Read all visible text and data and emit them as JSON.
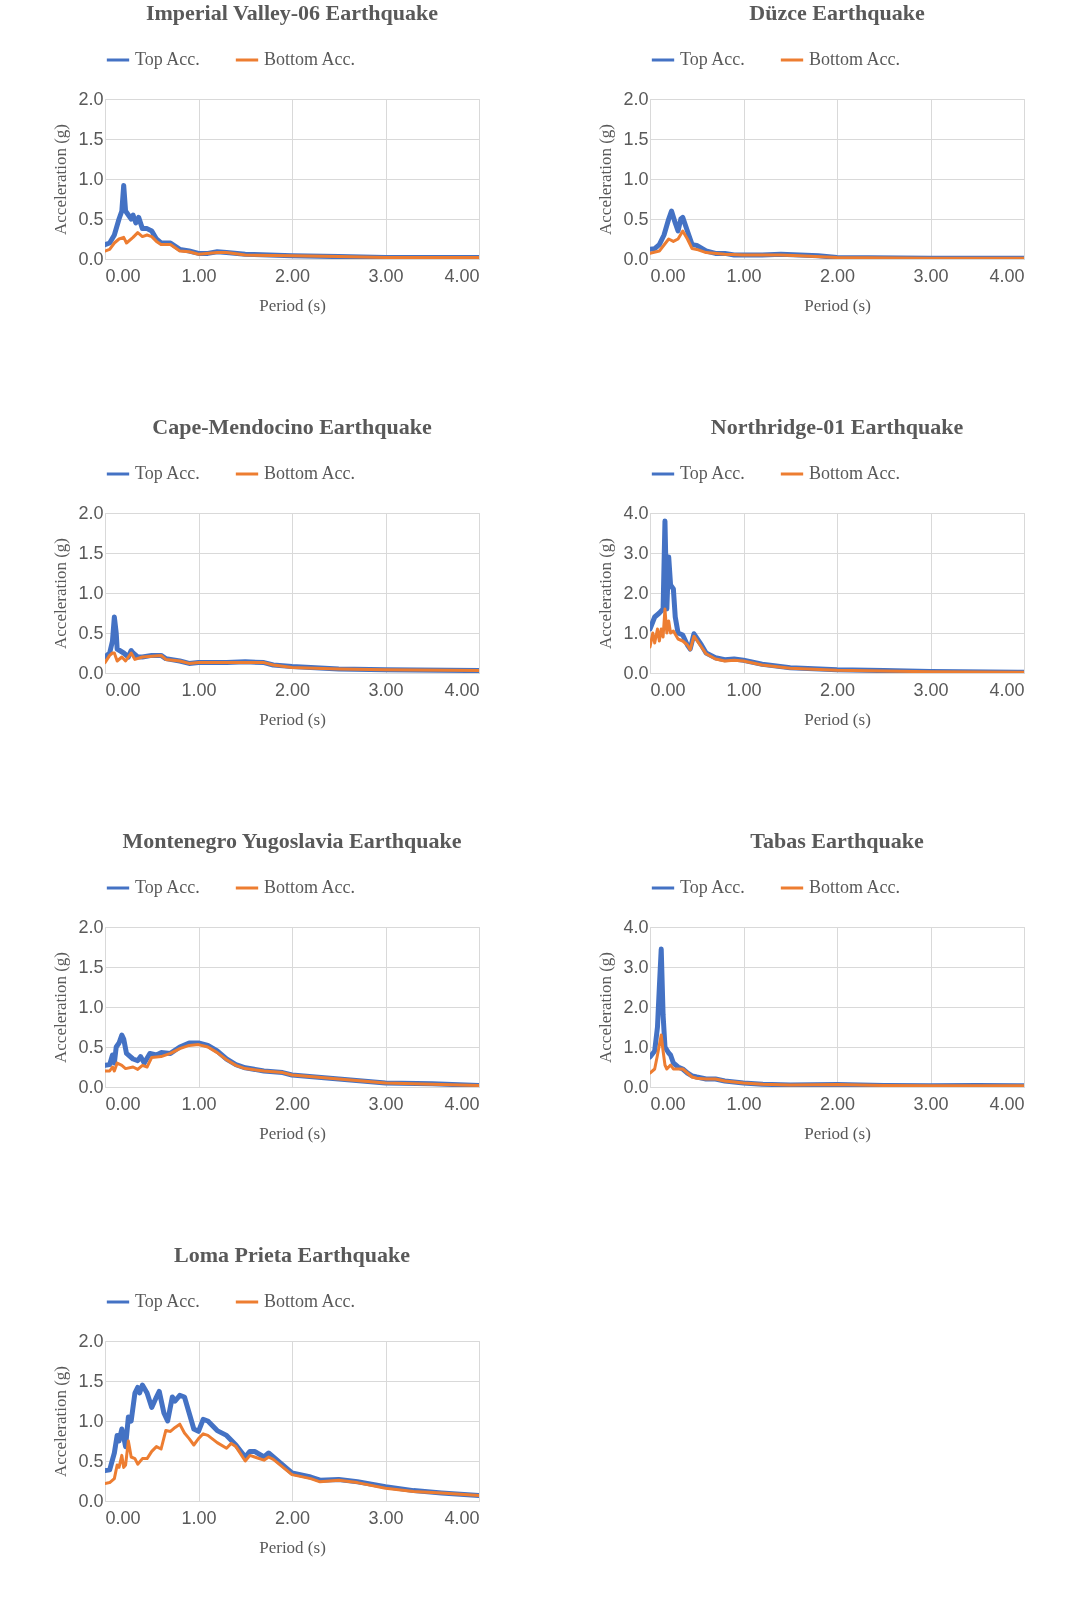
{
  "chart_data": [
    {
      "type": "line",
      "title": "Imperial Valley-06 Earthquake",
      "xlabel": "Period (s)",
      "ylabel": "Acceleration (g)",
      "legend": "top",
      "grid": true,
      "xlim": [
        0,
        4
      ],
      "ylim": [
        0,
        2
      ],
      "xticks": [
        {
          "value": 0,
          "label": "0.00"
        },
        {
          "value": 1,
          "label": "1.00"
        },
        {
          "value": 2,
          "label": "2.00"
        },
        {
          "value": 3,
          "label": "3.00"
        },
        {
          "value": 4,
          "label": "4.00"
        }
      ],
      "yticks": [
        {
          "value": 0,
          "label": "0.0"
        },
        {
          "value": 0.5,
          "label": "0.5"
        },
        {
          "value": 1,
          "label": "1.0"
        },
        {
          "value": 1.5,
          "label": "1.5"
        },
        {
          "value": 2,
          "label": "2.0"
        }
      ],
      "series": [
        {
          "name": "Top Acc.",
          "color": "#4472c4",
          "x": [
            0,
            0.05,
            0.1,
            0.15,
            0.18,
            0.2,
            0.22,
            0.25,
            0.28,
            0.3,
            0.33,
            0.36,
            0.4,
            0.45,
            0.5,
            0.55,
            0.6,
            0.7,
            0.8,
            0.9,
            1.0,
            1.1,
            1.2,
            1.3,
            1.5,
            2.0,
            2.5,
            3.0,
            3.5,
            4.0
          ],
          "values": [
            0.18,
            0.2,
            0.3,
            0.5,
            0.6,
            0.92,
            0.6,
            0.55,
            0.5,
            0.55,
            0.45,
            0.52,
            0.38,
            0.38,
            0.35,
            0.25,
            0.2,
            0.2,
            0.12,
            0.1,
            0.07,
            0.07,
            0.09,
            0.08,
            0.06,
            0.04,
            0.03,
            0.02,
            0.02,
            0.02
          ]
        },
        {
          "name": "Bottom Acc.",
          "color": "#ed7d31",
          "x": [
            0,
            0.05,
            0.1,
            0.15,
            0.2,
            0.23,
            0.3,
            0.35,
            0.4,
            0.45,
            0.5,
            0.55,
            0.6,
            0.7,
            0.8,
            0.9,
            1.0,
            1.2,
            1.3,
            1.5,
            2.0,
            2.5,
            3.0,
            4.0
          ],
          "values": [
            0.1,
            0.12,
            0.2,
            0.25,
            0.27,
            0.2,
            0.27,
            0.33,
            0.28,
            0.3,
            0.28,
            0.22,
            0.18,
            0.18,
            0.1,
            0.09,
            0.06,
            0.08,
            0.08,
            0.05,
            0.04,
            0.03,
            0.02,
            0.02
          ]
        }
      ]
    },
    {
      "type": "line",
      "title": "Düzce Earthquake",
      "xlabel": "Period (s)",
      "ylabel": "Acceleration (g)",
      "legend": "top",
      "grid": true,
      "xlim": [
        0,
        4
      ],
      "ylim": [
        0,
        2
      ],
      "xticks": [
        {
          "value": 0,
          "label": "0.00"
        },
        {
          "value": 1,
          "label": "1.00"
        },
        {
          "value": 2,
          "label": "2.00"
        },
        {
          "value": 3,
          "label": "3.00"
        },
        {
          "value": 4,
          "label": "4.00"
        }
      ],
      "yticks": [
        {
          "value": 0,
          "label": "0.0"
        },
        {
          "value": 0.5,
          "label": "0.5"
        },
        {
          "value": 1,
          "label": "1.0"
        },
        {
          "value": 1.5,
          "label": "1.5"
        },
        {
          "value": 2,
          "label": "2.0"
        }
      ],
      "series": [
        {
          "name": "Top Acc.",
          "color": "#4472c4",
          "x": [
            0,
            0.05,
            0.1,
            0.15,
            0.2,
            0.23,
            0.27,
            0.3,
            0.33,
            0.35,
            0.4,
            0.45,
            0.5,
            0.6,
            0.7,
            0.8,
            0.9,
            1.0,
            1.2,
            1.4,
            1.6,
            1.8,
            2.0,
            3.0,
            4.0
          ],
          "values": [
            0.12,
            0.13,
            0.18,
            0.3,
            0.5,
            0.6,
            0.45,
            0.35,
            0.5,
            0.52,
            0.35,
            0.18,
            0.17,
            0.1,
            0.07,
            0.07,
            0.05,
            0.05,
            0.05,
            0.06,
            0.05,
            0.04,
            0.02,
            0.01,
            0.01
          ]
        },
        {
          "name": "Bottom Acc.",
          "color": "#ed7d31",
          "x": [
            0,
            0.1,
            0.2,
            0.25,
            0.3,
            0.35,
            0.4,
            0.45,
            0.5,
            0.6,
            0.8,
            1.0,
            1.4,
            1.6,
            2.0,
            3.0,
            4.0
          ],
          "values": [
            0.07,
            0.1,
            0.25,
            0.22,
            0.25,
            0.35,
            0.25,
            0.13,
            0.12,
            0.08,
            0.06,
            0.05,
            0.05,
            0.04,
            0.02,
            0.01,
            0.01
          ]
        }
      ]
    },
    {
      "type": "line",
      "title": "Cape-Mendocino Earthquake",
      "xlabel": "Period (s)",
      "ylabel": "Acceleration (g)",
      "legend": "top",
      "grid": true,
      "xlim": [
        0,
        4
      ],
      "ylim": [
        0,
        2
      ],
      "xticks": [
        {
          "value": 0,
          "label": "0.00"
        },
        {
          "value": 1,
          "label": "1.00"
        },
        {
          "value": 2,
          "label": "2.00"
        },
        {
          "value": 3,
          "label": "3.00"
        },
        {
          "value": 4,
          "label": "4.00"
        }
      ],
      "yticks": [
        {
          "value": 0,
          "label": "0.0"
        },
        {
          "value": 0.5,
          "label": "0.5"
        },
        {
          "value": 1,
          "label": "1.0"
        },
        {
          "value": 1.5,
          "label": "1.5"
        },
        {
          "value": 2,
          "label": "2.0"
        }
      ],
      "series": [
        {
          "name": "Top Acc.",
          "color": "#4472c4",
          "x": [
            0,
            0.05,
            0.08,
            0.1,
            0.12,
            0.13,
            0.2,
            0.25,
            0.28,
            0.3,
            0.35,
            0.4,
            0.5,
            0.6,
            0.65,
            0.8,
            0.9,
            1.0,
            1.2,
            1.3,
            1.5,
            1.7,
            1.8,
            2.0,
            2.5,
            3.0,
            4.0
          ],
          "values": [
            0.2,
            0.25,
            0.4,
            0.7,
            0.5,
            0.3,
            0.25,
            0.2,
            0.28,
            0.25,
            0.2,
            0.2,
            0.22,
            0.22,
            0.18,
            0.15,
            0.12,
            0.13,
            0.13,
            0.13,
            0.14,
            0.13,
            0.1,
            0.08,
            0.05,
            0.04,
            0.03
          ]
        },
        {
          "name": "Bottom Acc.",
          "color": "#ed7d31",
          "x": [
            0,
            0.05,
            0.08,
            0.1,
            0.13,
            0.18,
            0.22,
            0.28,
            0.32,
            0.4,
            0.5,
            0.6,
            0.65,
            0.8,
            0.9,
            1.0,
            1.3,
            1.5,
            1.7,
            1.8,
            2.0,
            2.5,
            3.0,
            4.0
          ],
          "values": [
            0.13,
            0.22,
            0.25,
            0.25,
            0.15,
            0.2,
            0.15,
            0.25,
            0.17,
            0.2,
            0.21,
            0.22,
            0.17,
            0.15,
            0.12,
            0.13,
            0.13,
            0.13,
            0.13,
            0.1,
            0.07,
            0.05,
            0.04,
            0.03
          ]
        }
      ]
    },
    {
      "type": "line",
      "title": "Northridge-01 Earthquake",
      "xlabel": "Period (s)",
      "ylabel": "Acceleration (g)",
      "legend": "top",
      "grid": true,
      "xlim": [
        0,
        4
      ],
      "ylim": [
        0,
        4
      ],
      "xticks": [
        {
          "value": 0,
          "label": "0.00"
        },
        {
          "value": 1,
          "label": "1.00"
        },
        {
          "value": 2,
          "label": "2.00"
        },
        {
          "value": 3,
          "label": "3.00"
        },
        {
          "value": 4,
          "label": "4.00"
        }
      ],
      "yticks": [
        {
          "value": 0,
          "label": "0.0"
        },
        {
          "value": 1,
          "label": "1.0"
        },
        {
          "value": 2,
          "label": "2.0"
        },
        {
          "value": 3,
          "label": "3.0"
        },
        {
          "value": 4,
          "label": "4.0"
        }
      ],
      "series": [
        {
          "name": "Top Acc.",
          "color": "#4472c4",
          "x": [
            0,
            0.05,
            0.1,
            0.14,
            0.16,
            0.18,
            0.2,
            0.22,
            0.25,
            0.27,
            0.3,
            0.35,
            0.38,
            0.4,
            0.43,
            0.47,
            0.55,
            0.6,
            0.7,
            0.8,
            0.9,
            1.0,
            1.2,
            1.5,
            2.0,
            2.5,
            3.0,
            4.0
          ],
          "values": [
            1.1,
            1.4,
            1.5,
            1.6,
            3.8,
            1.6,
            2.9,
            2.2,
            2.1,
            1.4,
            1.0,
            0.95,
            0.8,
            0.7,
            0.6,
            0.98,
            0.7,
            0.5,
            0.38,
            0.33,
            0.35,
            0.32,
            0.22,
            0.13,
            0.08,
            0.06,
            0.04,
            0.02
          ]
        },
        {
          "name": "Bottom Acc.",
          "color": "#ed7d31",
          "x": [
            0,
            0.03,
            0.05,
            0.08,
            0.1,
            0.12,
            0.14,
            0.16,
            0.18,
            0.2,
            0.22,
            0.25,
            0.3,
            0.35,
            0.4,
            0.43,
            0.47,
            0.55,
            0.6,
            0.7,
            0.8,
            0.9,
            1.0,
            1.2,
            1.5,
            2.0,
            2.5,
            3.0,
            4.0
          ],
          "values": [
            0.65,
            1.0,
            0.75,
            1.1,
            0.8,
            1.1,
            0.9,
            1.6,
            1.0,
            1.3,
            1.0,
            1.05,
            0.85,
            0.8,
            0.7,
            0.58,
            0.92,
            0.65,
            0.48,
            0.35,
            0.3,
            0.32,
            0.3,
            0.2,
            0.12,
            0.07,
            0.05,
            0.03,
            0.02
          ]
        }
      ]
    },
    {
      "type": "line",
      "title": "Montenegro Yugoslavia Earthquake",
      "xlabel": "Period (s)",
      "ylabel": "Acceleration (g)",
      "legend": "top",
      "grid": true,
      "xlim": [
        0,
        4
      ],
      "ylim": [
        0,
        2
      ],
      "xticks": [
        {
          "value": 0,
          "label": "0.00"
        },
        {
          "value": 1,
          "label": "1.00"
        },
        {
          "value": 2,
          "label": "2.00"
        },
        {
          "value": 3,
          "label": "3.00"
        },
        {
          "value": 4,
          "label": "4.00"
        }
      ],
      "yticks": [
        {
          "value": 0,
          "label": "0.0"
        },
        {
          "value": 0.5,
          "label": "0.5"
        },
        {
          "value": 1,
          "label": "1.0"
        },
        {
          "value": 1.5,
          "label": "1.5"
        },
        {
          "value": 2,
          "label": "2.0"
        }
      ],
      "series": [
        {
          "name": "Top Acc.",
          "color": "#4472c4",
          "x": [
            0,
            0.05,
            0.08,
            0.1,
            0.12,
            0.15,
            0.18,
            0.2,
            0.23,
            0.3,
            0.35,
            0.38,
            0.42,
            0.48,
            0.55,
            0.6,
            0.7,
            0.8,
            0.9,
            1.0,
            1.1,
            1.2,
            1.3,
            1.4,
            1.5,
            1.7,
            1.9,
            2.0,
            2.5,
            3.0,
            3.5,
            4.0
          ],
          "values": [
            0.27,
            0.28,
            0.4,
            0.3,
            0.5,
            0.55,
            0.65,
            0.6,
            0.42,
            0.35,
            0.33,
            0.38,
            0.3,
            0.42,
            0.4,
            0.43,
            0.42,
            0.5,
            0.55,
            0.55,
            0.52,
            0.45,
            0.35,
            0.28,
            0.24,
            0.2,
            0.18,
            0.15,
            0.1,
            0.05,
            0.04,
            0.02
          ]
        },
        {
          "name": "Bottom Acc.",
          "color": "#ed7d31",
          "x": [
            0,
            0.05,
            0.08,
            0.1,
            0.13,
            0.18,
            0.22,
            0.3,
            0.35,
            0.4,
            0.45,
            0.5,
            0.6,
            0.7,
            0.8,
            0.9,
            1.0,
            1.1,
            1.2,
            1.3,
            1.4,
            1.5,
            1.7,
            1.9,
            2.0,
            2.5,
            3.0,
            4.0
          ],
          "values": [
            0.2,
            0.2,
            0.25,
            0.2,
            0.3,
            0.27,
            0.23,
            0.25,
            0.22,
            0.27,
            0.25,
            0.37,
            0.38,
            0.42,
            0.48,
            0.52,
            0.53,
            0.5,
            0.43,
            0.34,
            0.27,
            0.23,
            0.2,
            0.18,
            0.15,
            0.1,
            0.05,
            0.02
          ]
        }
      ]
    },
    {
      "type": "line",
      "title": "Tabas Earthquake",
      "xlabel": "Period (s)",
      "ylabel": "Acceleration (g)",
      "legend": "top",
      "grid": true,
      "xlim": [
        0,
        4
      ],
      "ylim": [
        0,
        4
      ],
      "xticks": [
        {
          "value": 0,
          "label": "0.00"
        },
        {
          "value": 1,
          "label": "1.00"
        },
        {
          "value": 2,
          "label": "2.00"
        },
        {
          "value": 3,
          "label": "3.00"
        },
        {
          "value": 4,
          "label": "4.00"
        }
      ],
      "yticks": [
        {
          "value": 0,
          "label": "0.0"
        },
        {
          "value": 1,
          "label": "1.0"
        },
        {
          "value": 2,
          "label": "2.0"
        },
        {
          "value": 3,
          "label": "3.0"
        },
        {
          "value": 4,
          "label": "4.0"
        }
      ],
      "series": [
        {
          "name": "Top Acc.",
          "color": "#4472c4",
          "x": [
            0,
            0.05,
            0.08,
            0.1,
            0.12,
            0.14,
            0.16,
            0.2,
            0.22,
            0.25,
            0.3,
            0.35,
            0.4,
            0.45,
            0.5,
            0.6,
            0.7,
            0.8,
            1.0,
            1.2,
            1.5,
            2.0,
            2.5,
            3.0,
            3.5,
            4.0
          ],
          "values": [
            0.75,
            0.9,
            1.5,
            2.5,
            3.45,
            1.8,
            1.0,
            0.85,
            0.8,
            0.6,
            0.5,
            0.45,
            0.35,
            0.28,
            0.25,
            0.2,
            0.2,
            0.15,
            0.1,
            0.07,
            0.05,
            0.06,
            0.04,
            0.03,
            0.04,
            0.03
          ]
        },
        {
          "name": "Bottom Acc.",
          "color": "#ed7d31",
          "x": [
            0,
            0.05,
            0.08,
            0.12,
            0.14,
            0.16,
            0.18,
            0.22,
            0.25,
            0.3,
            0.35,
            0.4,
            0.45,
            0.5,
            0.6,
            0.7,
            0.8,
            1.0,
            1.2,
            1.5,
            2.0,
            2.5,
            3.0,
            4.0
          ],
          "values": [
            0.35,
            0.45,
            0.8,
            1.3,
            0.9,
            0.55,
            0.45,
            0.55,
            0.45,
            0.45,
            0.45,
            0.35,
            0.25,
            0.22,
            0.2,
            0.2,
            0.15,
            0.1,
            0.07,
            0.05,
            0.06,
            0.04,
            0.03,
            0.03
          ]
        }
      ]
    },
    {
      "type": "line",
      "title": "Loma Prieta Earthquake",
      "xlabel": "Period (s)",
      "ylabel": "Acceleration (g)",
      "legend": "top",
      "grid": true,
      "xlim": [
        0,
        4
      ],
      "ylim": [
        0,
        2
      ],
      "xticks": [
        {
          "value": 0,
          "label": "0.00"
        },
        {
          "value": 1,
          "label": "1.00"
        },
        {
          "value": 2,
          "label": "2.00"
        },
        {
          "value": 3,
          "label": "3.00"
        },
        {
          "value": 4,
          "label": "4.00"
        }
      ],
      "yticks": [
        {
          "value": 0,
          "label": "0.0"
        },
        {
          "value": 0.5,
          "label": "0.5"
        },
        {
          "value": 1,
          "label": "1.0"
        },
        {
          "value": 1.5,
          "label": "1.5"
        },
        {
          "value": 2,
          "label": "2.0"
        }
      ],
      "series": [
        {
          "name": "Top Acc.",
          "color": "#4472c4",
          "x": [
            0,
            0.05,
            0.1,
            0.13,
            0.15,
            0.18,
            0.2,
            0.22,
            0.25,
            0.28,
            0.32,
            0.35,
            0.37,
            0.4,
            0.45,
            0.5,
            0.55,
            0.58,
            0.63,
            0.67,
            0.72,
            0.75,
            0.8,
            0.85,
            0.9,
            0.95,
            1.0,
            1.05,
            1.1,
            1.2,
            1.3,
            1.4,
            1.5,
            1.55,
            1.6,
            1.7,
            1.75,
            1.8,
            2.0,
            2.2,
            2.3,
            2.5,
            2.7,
            3.0,
            3.3,
            3.6,
            4.0
          ],
          "values": [
            0.38,
            0.39,
            0.6,
            0.82,
            0.75,
            0.9,
            0.8,
            0.68,
            1.05,
            1.0,
            1.35,
            1.42,
            1.35,
            1.45,
            1.35,
            1.17,
            1.3,
            1.37,
            1.1,
            1.0,
            1.3,
            1.25,
            1.32,
            1.3,
            1.1,
            0.9,
            0.87,
            1.02,
            1.0,
            0.88,
            0.82,
            0.7,
            0.55,
            0.62,
            0.62,
            0.55,
            0.6,
            0.55,
            0.35,
            0.3,
            0.26,
            0.27,
            0.24,
            0.18,
            0.13,
            0.1,
            0.07
          ]
        },
        {
          "name": "Bottom Acc.",
          "color": "#ed7d31",
          "x": [
            0,
            0.05,
            0.1,
            0.13,
            0.15,
            0.18,
            0.2,
            0.22,
            0.25,
            0.28,
            0.32,
            0.35,
            0.4,
            0.45,
            0.5,
            0.55,
            0.6,
            0.65,
            0.7,
            0.75,
            0.8,
            0.85,
            0.9,
            0.95,
            1.0,
            1.05,
            1.1,
            1.2,
            1.3,
            1.35,
            1.4,
            1.5,
            1.55,
            1.6,
            1.7,
            1.75,
            1.8,
            2.0,
            2.2,
            2.3,
            2.5,
            2.7,
            3.0,
            3.3,
            3.6,
            4.0
          ],
          "values": [
            0.22,
            0.23,
            0.28,
            0.45,
            0.42,
            0.57,
            0.42,
            0.45,
            0.75,
            0.55,
            0.53,
            0.46,
            0.53,
            0.53,
            0.62,
            0.68,
            0.65,
            0.88,
            0.87,
            0.92,
            0.96,
            0.85,
            0.78,
            0.7,
            0.78,
            0.84,
            0.82,
            0.73,
            0.66,
            0.72,
            0.68,
            0.5,
            0.57,
            0.55,
            0.51,
            0.55,
            0.52,
            0.33,
            0.28,
            0.24,
            0.26,
            0.23,
            0.16,
            0.12,
            0.1,
            0.07
          ]
        }
      ]
    }
  ]
}
